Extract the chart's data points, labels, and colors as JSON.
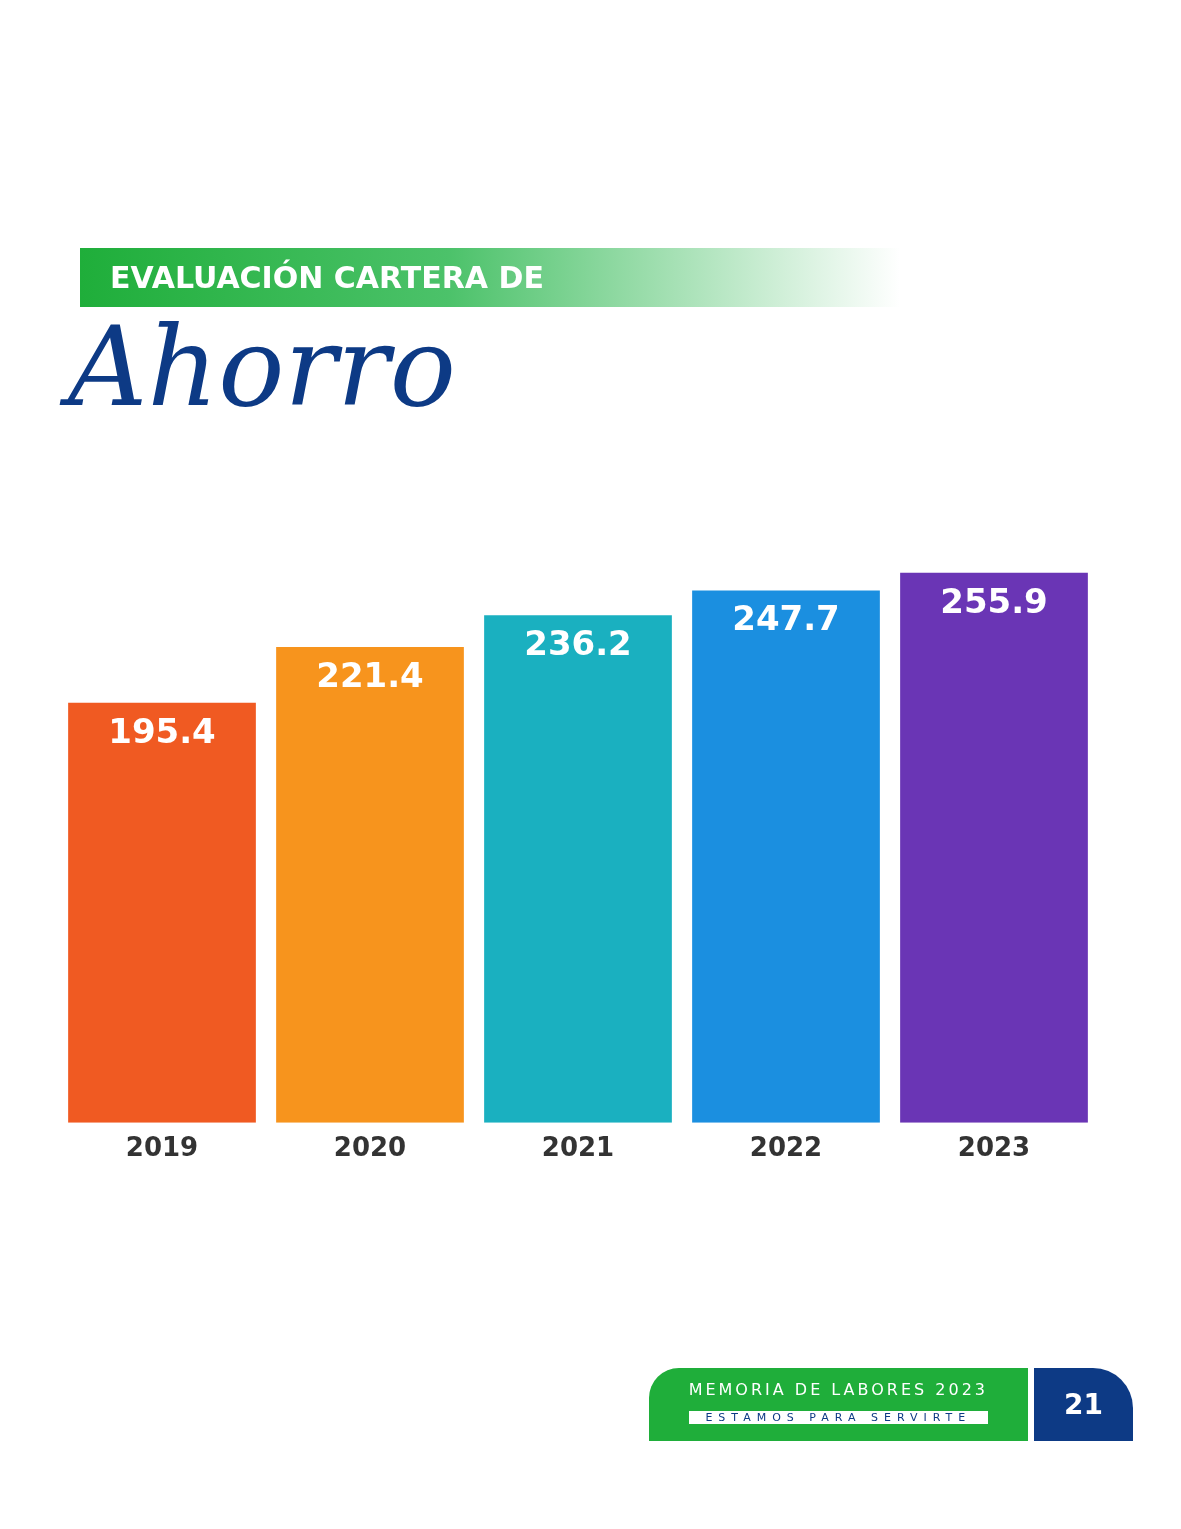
{
  "chart_data": {
    "type": "bar",
    "title": "EVALUACIÓN CARTERA DE",
    "subtitle": "Ahorro",
    "categories": [
      "2019",
      "2020",
      "2021",
      "2022",
      "2023"
    ],
    "values": [
      195.4,
      221.4,
      236.2,
      247.7,
      255.9
    ],
    "colors": [
      "#f05a22",
      "#f7941d",
      "#1ab0c0",
      "#1b8fe0",
      "#6a35b5"
    ],
    "data_labels": true,
    "tick_labels": "x",
    "grid": false,
    "legend": false,
    "annotations": [
      "MEMORIA DE LABORES 2023",
      "ESTAMOS PARA SERVIRTE",
      "21"
    ]
  }
}
